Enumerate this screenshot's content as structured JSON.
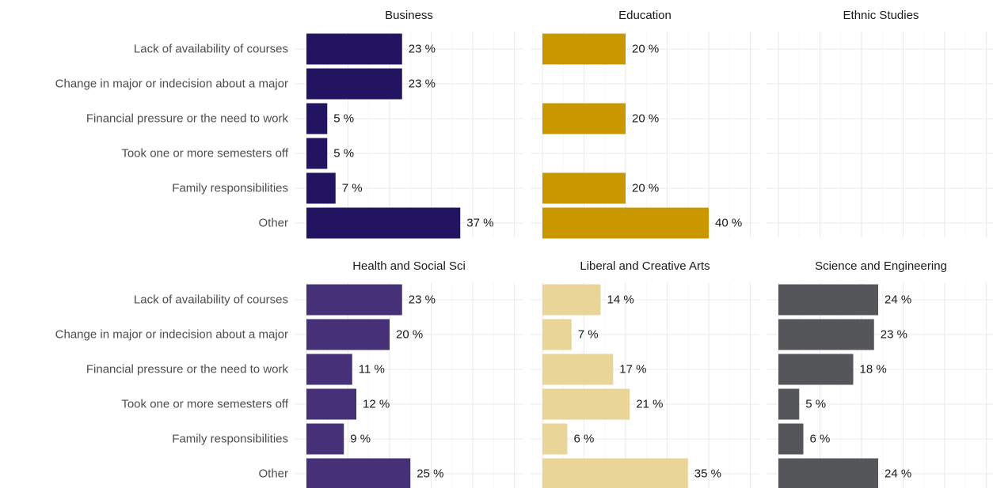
{
  "chart_data": {
    "type": "bar",
    "orientation": "horizontal",
    "categories": [
      "Lack of availability of courses",
      "Change in major or indecision about a major",
      "Financial pressure or the need to work",
      "Took one or more semesters off",
      "Family responsibilities",
      "Other"
    ],
    "xlim": [
      0,
      50
    ],
    "grid": true,
    "legend": "none",
    "value_suffix": " %",
    "facets": [
      {
        "title": "Business",
        "color": "#221461",
        "values": [
          23,
          23,
          5,
          5,
          7,
          37
        ]
      },
      {
        "title": "Education",
        "color": "#C99700",
        "values": [
          20,
          null,
          20,
          null,
          20,
          40
        ]
      },
      {
        "title": "Ethnic Studies",
        "color": "#999999",
        "values": [
          null,
          null,
          null,
          null,
          null,
          null
        ]
      },
      {
        "title": "Health and Social Sci",
        "color": "#463077",
        "values": [
          23,
          20,
          11,
          12,
          9,
          25
        ]
      },
      {
        "title": "Liberal and Creative Arts",
        "color": "#E9D597",
        "values": [
          14,
          7,
          17,
          21,
          6,
          35
        ]
      },
      {
        "title": "Science and Engineering",
        "color": "#54565A",
        "values": [
          24,
          23,
          18,
          5,
          6,
          24
        ]
      }
    ]
  }
}
